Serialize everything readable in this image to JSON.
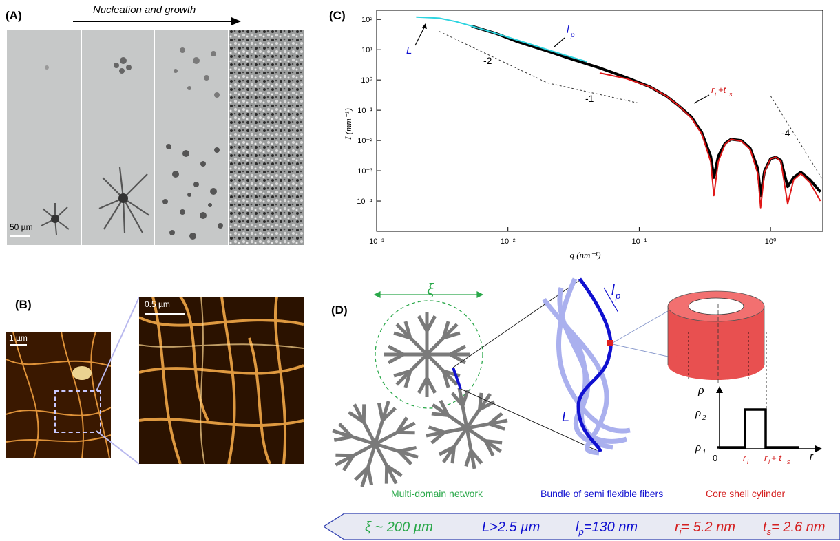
{
  "panels": {
    "a": {
      "label": "(A)",
      "arrow_text": "Nucleation and growth",
      "scale_text": "50 µm"
    },
    "b": {
      "label": "(B)",
      "scale_small": "1 µm",
      "scale_large": "0.5 µm"
    },
    "c": {
      "label": "(C)",
      "annotations": {
        "L": "L",
        "lp": "l",
        "lp_sub": "p",
        "slope1": "-2",
        "slope2": "-1",
        "slope3": "-4",
        "ri": "r",
        "ri_sub": "i",
        "ts_plus": "+t",
        "ts_sub": "s"
      }
    },
    "d": {
      "label": "(D)",
      "xi": "ξ",
      "lp": "l",
      "lp_sub": "p",
      "L": "L",
      "profile": {
        "rho": "ρ",
        "rho2": "ρ",
        "rho2_sub": "2",
        "rho1": "ρ",
        "rho1_sub": "1",
        "zero": "0",
        "ri": "r",
        "ri_sub": "i",
        "ri_ts": "r",
        "ri_ts_sub": "i",
        "ri_ts_rest": " + t",
        "ri_ts_rest_sub": "s",
        "r": "r"
      },
      "captions": {
        "network": "Multi-domain network",
        "bundle": "Bundle of semi flexible fibers",
        "core": "Core shell cylinder"
      }
    }
  },
  "chart_data": {
    "type": "line",
    "title": "",
    "xlabel": "q (nm⁻¹)",
    "ylabel": "I (mm⁻¹)",
    "xscale": "log",
    "yscale": "log",
    "xlim": [
      0.001,
      2.5
    ],
    "ylim": [
      1e-05,
      200
    ],
    "x_ticks": [
      "10⁻³",
      "10⁻²",
      "10⁻¹",
      "10⁰"
    ],
    "y_ticks": [
      "10²",
      "10¹",
      "10⁰",
      "10⁻¹",
      "10⁻²",
      "10⁻³",
      "10⁻⁴"
    ],
    "series": [
      {
        "color": "#000000",
        "x": [
          0.0053,
          0.008,
          0.012,
          0.02,
          0.03,
          0.05,
          0.08,
          0.12,
          0.16,
          0.2,
          0.25,
          0.3,
          0.35,
          0.37,
          0.4,
          0.45,
          0.5,
          0.6,
          0.7,
          0.8,
          0.84,
          0.9,
          1.0,
          1.1,
          1.2,
          1.35,
          1.5,
          1.7,
          2.0,
          2.4
        ],
        "y": [
          60,
          35,
          18,
          9,
          5,
          2.5,
          1.2,
          0.6,
          0.3,
          0.14,
          0.06,
          0.018,
          0.003,
          0.0006,
          0.003,
          0.008,
          0.011,
          0.01,
          0.0055,
          0.0012,
          0.00015,
          0.001,
          0.0025,
          0.0028,
          0.0022,
          0.0003,
          0.0006,
          0.0009,
          0.0005,
          0.0002
        ]
      },
      {
        "color": "#2dd4e0",
        "x": [
          0.002,
          0.003,
          0.004,
          0.005,
          0.007,
          0.01,
          0.015,
          0.02,
          0.03,
          0.04
        ],
        "y": [
          120,
          110,
          85,
          65,
          42,
          26,
          15,
          10,
          5.8,
          4.0
        ]
      },
      {
        "color": "#e01818",
        "x": [
          0.05,
          0.08,
          0.12,
          0.16,
          0.2,
          0.25,
          0.3,
          0.35,
          0.37,
          0.4,
          0.45,
          0.5,
          0.6,
          0.7,
          0.8,
          0.84,
          0.9,
          1.0,
          1.1,
          1.2,
          1.35,
          1.5,
          1.7,
          2.0,
          2.4
        ],
        "y": [
          1.7,
          1.1,
          0.6,
          0.3,
          0.14,
          0.055,
          0.016,
          0.002,
          0.00015,
          0.002,
          0.0075,
          0.011,
          0.0095,
          0.005,
          0.0008,
          6e-05,
          0.0009,
          0.0025,
          0.0028,
          0.002,
          8e-05,
          0.0005,
          0.0008,
          0.0004,
          0.0001
        ]
      },
      {
        "color": "#333333",
        "x": [
          0.003,
          0.02,
          0.1
        ],
        "y": [
          40,
          0.8,
          0.17
        ]
      },
      {
        "color": "#333333",
        "x": [
          1.0,
          2.5
        ],
        "y": [
          0.3,
          0.0005
        ]
      }
    ]
  },
  "summary": {
    "xi": "ξ ~ 200 µm",
    "L": "L>2.5 µm",
    "lp_main": "l",
    "lp_sub": "p",
    "lp_rest": "=130 nm",
    "ri_main": "r",
    "ri_sub": "i",
    "ri_rest": "= 5.2 nm",
    "ts_main": "t",
    "ts_sub": "s",
    "ts_rest": "= 2.6 nm",
    "colors": {
      "green": "#2aa84a",
      "blue": "#1010d0",
      "red": "#d42020"
    }
  }
}
